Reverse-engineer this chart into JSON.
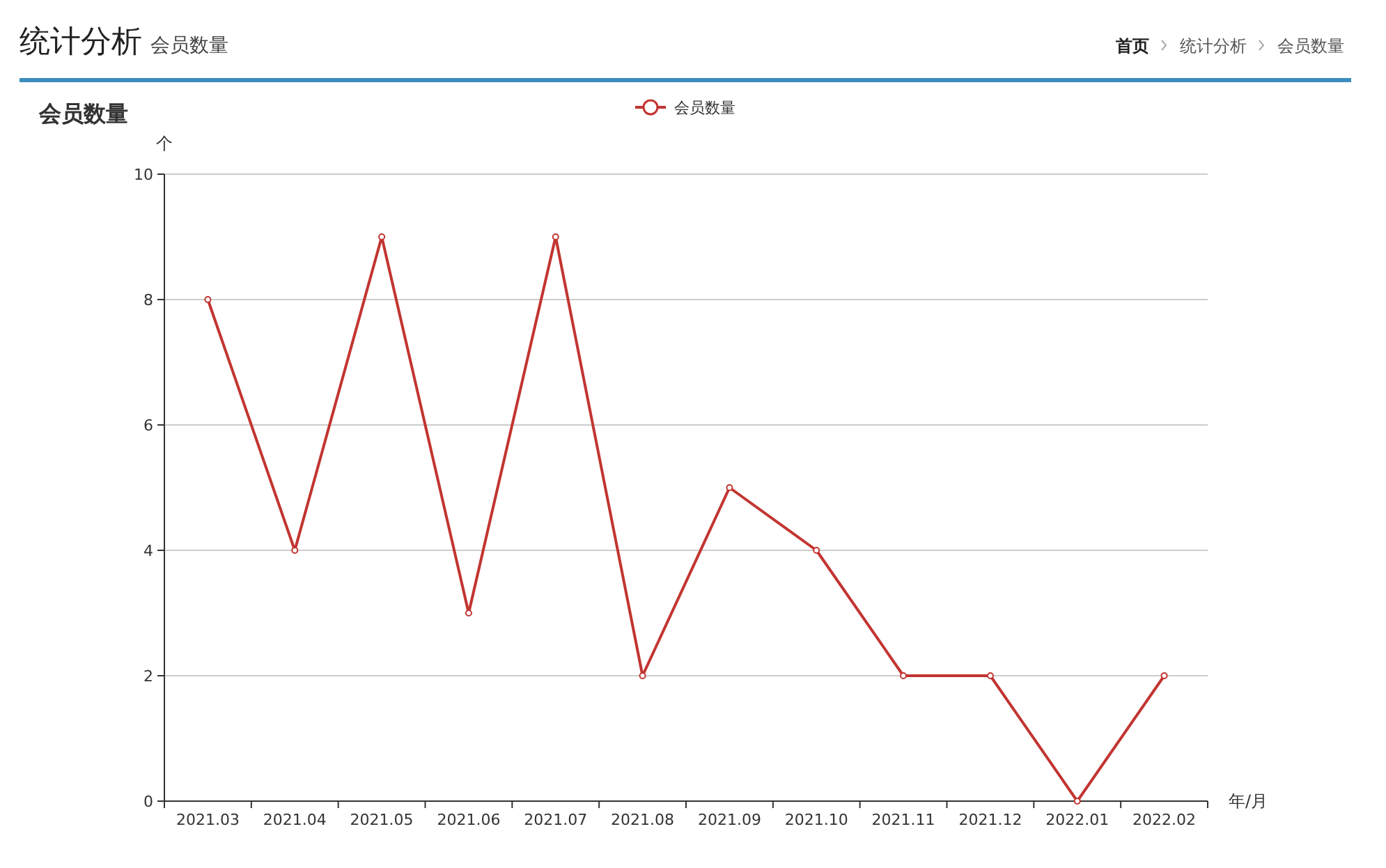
{
  "chart_data": {
    "type": "line",
    "title": "统计分析",
    "subtitle": "会员数量",
    "annotations": [
      "首页",
      "统计分析",
      "会员数量",
      "会员数量"
    ],
    "xlabel": "年/月",
    "ylabel": "个",
    "categories": [
      "2021.03",
      "2021.04",
      "2021.05",
      "2021.06",
      "2021.07",
      "2021.08",
      "2021.09",
      "2021.10",
      "2021.11",
      "2021.12",
      "2022.01",
      "2022.02"
    ],
    "series": [
      {
        "name": "会员数量",
        "color": "#c23531",
        "values": [
          8,
          4,
          9,
          3,
          9,
          2,
          5,
          4,
          2,
          2,
          0,
          2
        ]
      }
    ],
    "ylim": [
      0,
      10
    ],
    "yticks": [
      0,
      2,
      4,
      6,
      8,
      10
    ],
    "grid": "y",
    "legend": "top",
    "marker": "circle",
    "line_style": "solid"
  }
}
